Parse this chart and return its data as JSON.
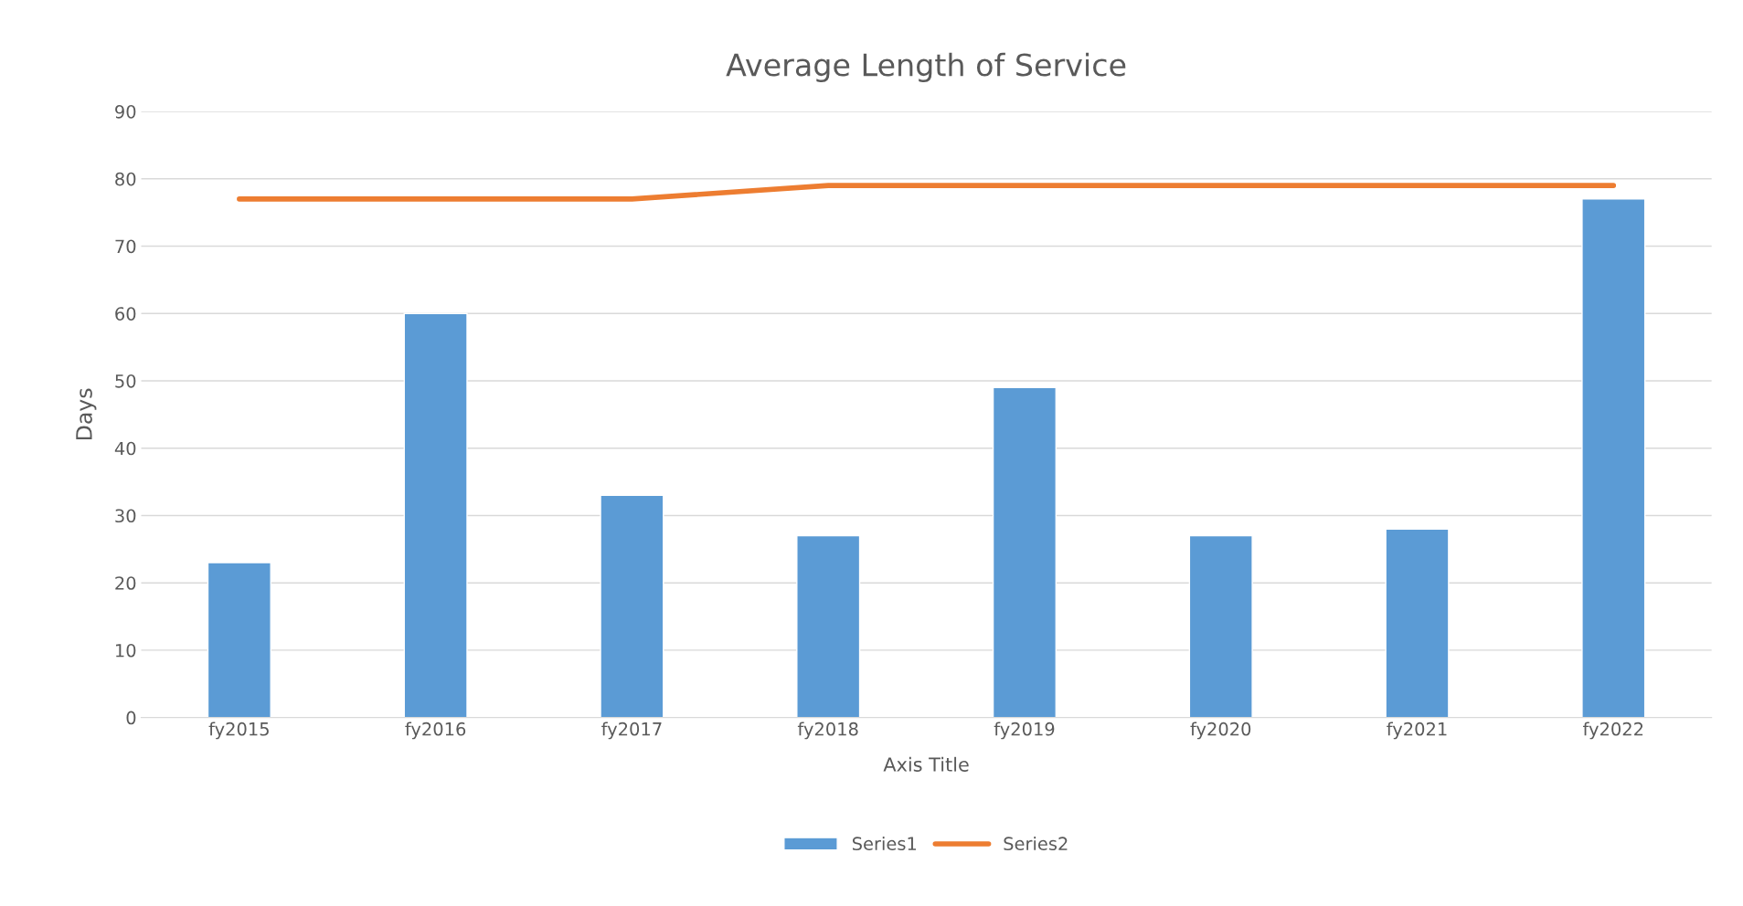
{
  "chart_data": {
    "type": "bar",
    "title": "Average Length of Service",
    "xlabel": "Axis Title",
    "ylabel": "Days",
    "categories": [
      "fy2015",
      "fy2016",
      "fy2017",
      "fy2018",
      "fy2019",
      "fy2020",
      "fy2021",
      "fy2022"
    ],
    "series": [
      {
        "name": "Series1",
        "color": "#5b9bd5",
        "values": [
          23,
          60,
          33,
          27,
          49,
          27,
          28,
          77
        ]
      },
      {
        "name": "Series2",
        "type": "line",
        "color": "#ed7d31",
        "values": [
          77,
          77,
          77,
          79,
          79,
          79,
          79,
          79
        ]
      }
    ],
    "ylim": [
      0,
      90
    ],
    "yticks": [
      0,
      10,
      20,
      30,
      40,
      50,
      60,
      70,
      80,
      90
    ],
    "grid": "y",
    "legend": "bottom"
  }
}
